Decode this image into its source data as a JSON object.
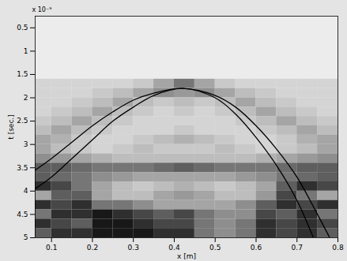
{
  "chart_data": {
    "type": "heatmap",
    "x_label": "x [m]",
    "y_label": "t [sec.]",
    "annotation": "x 10⁻⁹",
    "xlim": [
      0.06,
      0.8
    ],
    "xticks": [
      0.1,
      0.2,
      0.3,
      0.4,
      0.5,
      0.6,
      0.7,
      0.8
    ],
    "ylim": [
      0.25,
      5
    ],
    "yticks": [
      0.5,
      1,
      1.5,
      2,
      2.5,
      3,
      3.5,
      4,
      4.5,
      5
    ],
    "grid": false,
    "zlim": [
      0,
      1
    ],
    "x_edges": [
      0.06,
      0.1,
      0.15,
      0.2,
      0.25,
      0.3,
      0.35,
      0.4,
      0.45,
      0.5,
      0.55,
      0.6,
      0.65,
      0.7,
      0.75,
      0.8
    ],
    "y_edges": [
      1.6,
      1.8,
      2.0,
      2.2,
      2.4,
      2.6,
      2.8,
      3.0,
      3.2,
      3.4,
      3.6,
      3.8,
      4.0,
      4.2,
      4.4,
      4.6,
      4.8,
      5.0
    ],
    "cells": [
      [
        0.1,
        0.1,
        0.1,
        0.1,
        0.1,
        0.15,
        0.3,
        0.5,
        0.3,
        0.15,
        0.1,
        0.1,
        0.1,
        0.1,
        0.1
      ],
      [
        0.1,
        0.1,
        0.1,
        0.15,
        0.2,
        0.3,
        0.4,
        0.35,
        0.4,
        0.3,
        0.2,
        0.15,
        0.1,
        0.1,
        0.1
      ],
      [
        0.1,
        0.1,
        0.15,
        0.2,
        0.3,
        0.2,
        0.15,
        0.2,
        0.15,
        0.2,
        0.3,
        0.2,
        0.15,
        0.1,
        0.1
      ],
      [
        0.1,
        0.15,
        0.2,
        0.3,
        0.2,
        0.15,
        0.1,
        0.15,
        0.1,
        0.15,
        0.2,
        0.3,
        0.2,
        0.15,
        0.1
      ],
      [
        0.15,
        0.2,
        0.3,
        0.2,
        0.15,
        0.1,
        0.1,
        0.1,
        0.1,
        0.1,
        0.15,
        0.2,
        0.3,
        0.2,
        0.15
      ],
      [
        0.2,
        0.3,
        0.2,
        0.15,
        0.1,
        0.1,
        0.1,
        0.15,
        0.1,
        0.1,
        0.1,
        0.15,
        0.2,
        0.3,
        0.2
      ],
      [
        0.3,
        0.25,
        0.15,
        0.1,
        0.1,
        0.15,
        0.2,
        0.25,
        0.2,
        0.15,
        0.1,
        0.1,
        0.15,
        0.25,
        0.3
      ],
      [
        0.3,
        0.2,
        0.15,
        0.1,
        0.15,
        0.2,
        0.15,
        0.15,
        0.15,
        0.2,
        0.15,
        0.1,
        0.15,
        0.2,
        0.3
      ],
      [
        0.4,
        0.35,
        0.3,
        0.25,
        0.2,
        0.2,
        0.2,
        0.2,
        0.2,
        0.2,
        0.2,
        0.25,
        0.3,
        0.35,
        0.4
      ],
      [
        0.6,
        0.6,
        0.55,
        0.5,
        0.5,
        0.5,
        0.55,
        0.6,
        0.55,
        0.5,
        0.5,
        0.5,
        0.55,
        0.6,
        0.6
      ],
      [
        0.6,
        0.55,
        0.5,
        0.4,
        0.35,
        0.3,
        0.3,
        0.3,
        0.3,
        0.3,
        0.35,
        0.4,
        0.5,
        0.55,
        0.6
      ],
      [
        0.8,
        0.7,
        0.5,
        0.3,
        0.2,
        0.15,
        0.2,
        0.25,
        0.2,
        0.15,
        0.2,
        0.3,
        0.6,
        0.8,
        0.7
      ],
      [
        0.3,
        0.6,
        0.6,
        0.3,
        0.2,
        0.2,
        0.3,
        0.35,
        0.3,
        0.2,
        0.2,
        0.35,
        0.7,
        0.5,
        0.3
      ],
      [
        0.8,
        0.7,
        0.8,
        0.5,
        0.5,
        0.4,
        0.3,
        0.3,
        0.3,
        0.3,
        0.4,
        0.6,
        0.8,
        0.7,
        0.8
      ],
      [
        0.5,
        0.8,
        0.8,
        0.9,
        0.8,
        0.7,
        0.6,
        0.7,
        0.5,
        0.4,
        0.4,
        0.7,
        0.6,
        0.8,
        0.5
      ],
      [
        0.8,
        0.7,
        0.6,
        0.9,
        0.9,
        0.8,
        0.7,
        0.7,
        0.5,
        0.4,
        0.5,
        0.8,
        0.7,
        0.8,
        0.7
      ],
      [
        0.6,
        0.8,
        0.8,
        0.9,
        0.9,
        0.9,
        0.8,
        0.8,
        0.5,
        0.4,
        0.5,
        0.8,
        0.7,
        0.8,
        0.6
      ]
    ],
    "series": [
      {
        "type": "line",
        "color": "#000000",
        "x": [
          0.06,
          0.1,
          0.15,
          0.2,
          0.25,
          0.3,
          0.35,
          0.42,
          0.5,
          0.55,
          0.6,
          0.65,
          0.7,
          0.75,
          0.78
        ],
        "values": [
          3.55,
          3.3,
          2.95,
          2.6,
          2.3,
          2.05,
          1.9,
          1.8,
          1.95,
          2.2,
          2.6,
          3.1,
          3.7,
          4.5,
          5.0
        ]
      },
      {
        "type": "line",
        "color": "#000000",
        "x": [
          0.06,
          0.1,
          0.15,
          0.2,
          0.25,
          0.3,
          0.35,
          0.42,
          0.5,
          0.55,
          0.6,
          0.65,
          0.7,
          0.74
        ],
        "values": [
          3.95,
          3.7,
          3.3,
          2.9,
          2.5,
          2.2,
          1.95,
          1.8,
          2.0,
          2.35,
          2.85,
          3.45,
          4.2,
          5.0
        ]
      }
    ]
  }
}
